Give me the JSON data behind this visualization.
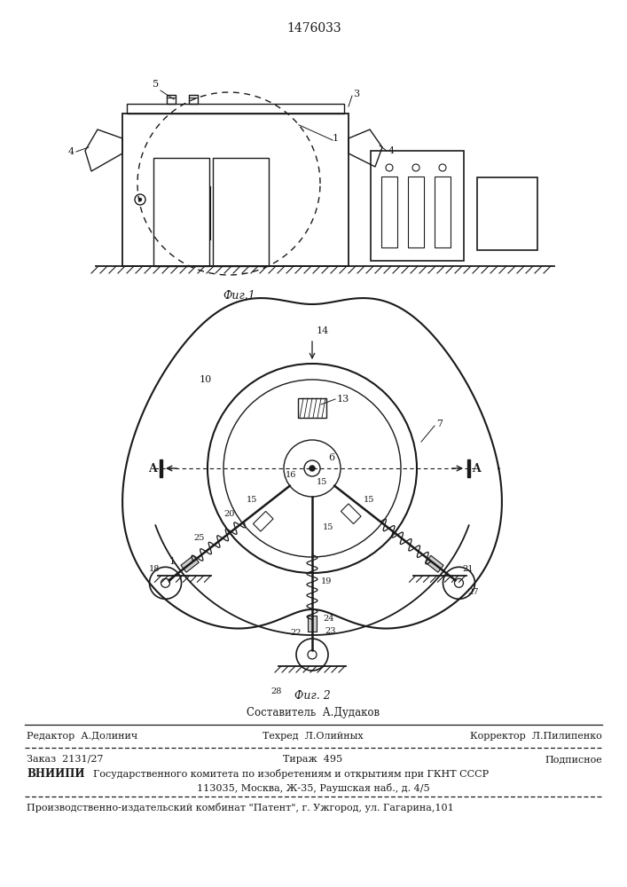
{
  "patent_number": "1476033",
  "fig1_caption": "Фиг.1",
  "fig2_caption": "Фиг. 2",
  "line_color": "#1a1a1a"
}
